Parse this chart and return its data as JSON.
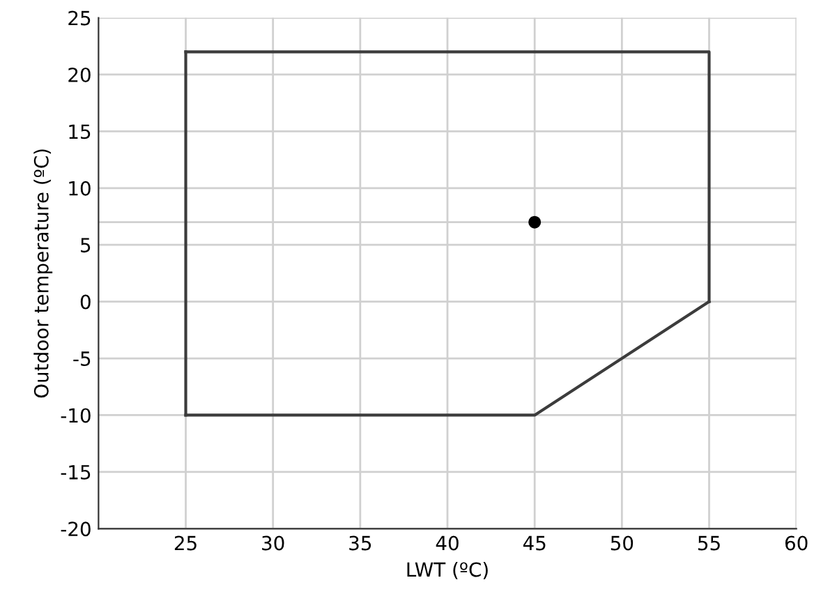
{
  "chart_data": {
    "type": "line",
    "xlabel": "LWT (ºC)",
    "ylabel": "Outdoor temperature (ºC)",
    "series": [
      {
        "color": "#3c3c3c",
        "x": [
          25,
          25
        ],
        "values": [
          -10,
          22
        ]
      },
      {
        "color": "#3c3c3c",
        "x": [
          25,
          55,
          55
        ],
        "values": [
          22,
          22,
          0
        ]
      },
      {
        "color": "#3c3c3c",
        "x": [
          25,
          45,
          55
        ],
        "values": [
          -10,
          -10,
          0
        ]
      },
      {
        "type": "scatter",
        "marker": "circle",
        "color": "#000000",
        "x": [
          45
        ],
        "values": [
          7
        ]
      }
    ],
    "xlim": [
      20,
      60
    ],
    "xticks": [
      25,
      30,
      35,
      40,
      45,
      50,
      55,
      60
    ],
    "ylim": [
      -20,
      25
    ],
    "yticks": [
      -20,
      -15,
      -10,
      -5,
      0,
      5,
      10,
      15,
      20,
      25
    ],
    "ref_lines": [
      {
        "axis": "y",
        "value": 7,
        "color": "#d0d0d0"
      }
    ],
    "grid": true,
    "line_style": "solid"
  }
}
